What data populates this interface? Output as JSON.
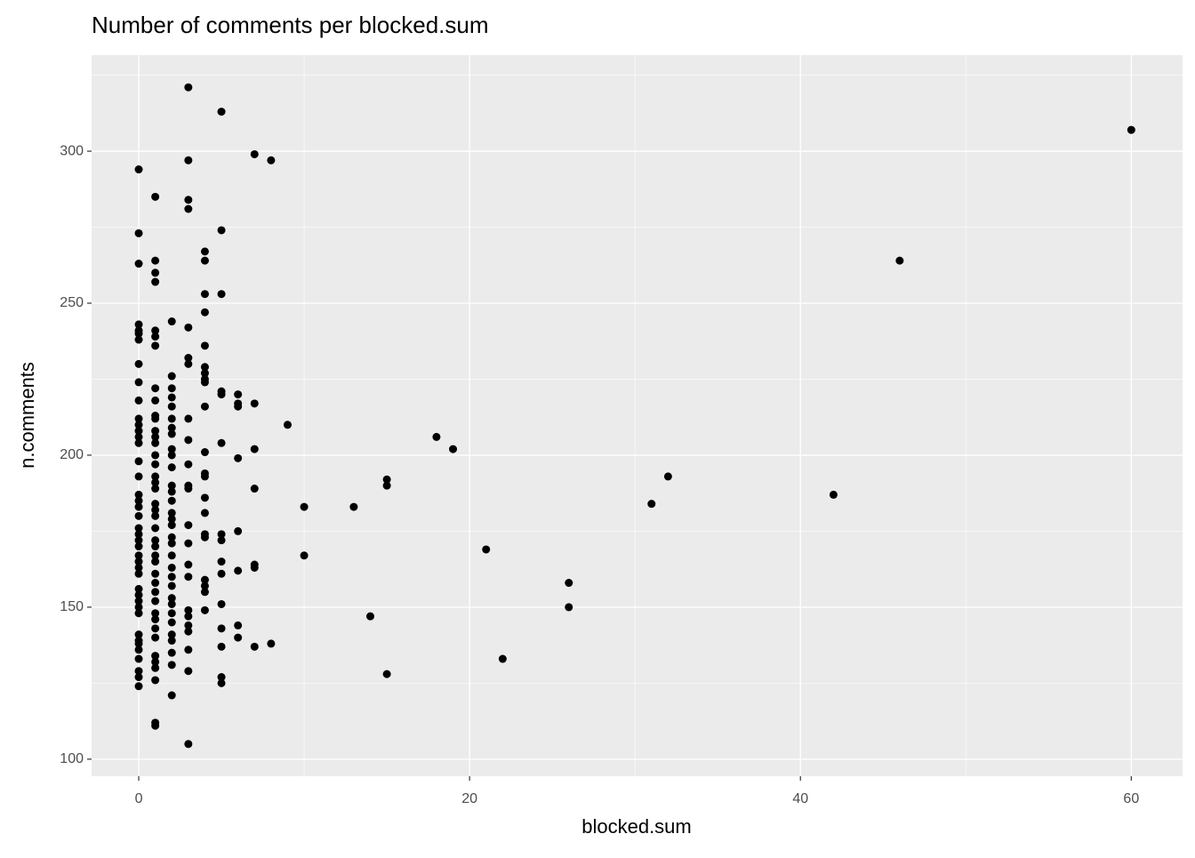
{
  "chart_data": {
    "type": "scatter",
    "title": "Number of comments per blocked.sum",
    "x_label": "blocked.sum",
    "y_label": "n.comments",
    "color": "#000000",
    "grid": true,
    "xlim": [
      -2.85,
      63.1
    ],
    "ylim": [
      94.4,
      331.6
    ],
    "xticks": [
      0,
      20,
      40,
      60
    ],
    "yticks": [
      100,
      150,
      200,
      250,
      300
    ],
    "x": [
      0,
      0,
      0,
      0,
      0,
      0,
      0,
      0,
      0,
      0,
      0,
      0,
      0,
      0,
      0,
      0,
      0,
      0,
      0,
      0,
      0,
      0,
      0,
      0,
      0,
      0,
      0,
      0,
      0,
      0,
      0,
      0,
      0,
      0,
      0,
      0,
      0,
      0,
      0,
      0,
      0,
      0,
      1,
      1,
      1,
      1,
      1,
      1,
      1,
      1,
      1,
      1,
      1,
      1,
      1,
      1,
      1,
      1,
      1,
      1,
      1,
      1,
      1,
      1,
      1,
      1,
      1,
      1,
      1,
      1,
      1,
      1,
      1,
      1,
      1,
      1,
      1,
      1,
      1,
      1,
      1,
      1,
      1,
      2,
      2,
      2,
      2,
      2,
      2,
      2,
      2,
      2,
      2,
      2,
      2,
      2,
      2,
      2,
      2,
      2,
      2,
      2,
      2,
      2,
      2,
      2,
      2,
      2,
      2,
      2,
      2,
      2,
      2,
      2,
      2,
      3,
      3,
      3,
      3,
      3,
      3,
      3,
      3,
      3,
      3,
      3,
      3,
      3,
      3,
      3,
      3,
      3,
      3,
      3,
      3,
      3,
      3,
      3,
      4,
      4,
      4,
      4,
      4,
      4,
      4,
      4,
      4,
      4,
      4,
      4,
      4,
      4,
      4,
      4,
      4,
      4,
      4,
      4,
      4,
      5,
      5,
      5,
      5,
      5,
      5,
      5,
      5,
      5,
      5,
      5,
      5,
      5,
      5,
      5,
      6,
      6,
      6,
      6,
      6,
      6,
      6,
      6,
      7,
      7,
      7,
      7,
      7,
      7,
      7,
      8,
      8,
      9,
      10,
      10,
      13,
      14,
      15,
      15,
      15,
      18,
      19,
      21,
      22,
      26,
      26,
      31,
      32,
      42,
      46,
      60
    ],
    "values": [
      294,
      273,
      263,
      243,
      241,
      240,
      238,
      230,
      224,
      218,
      212,
      210,
      208,
      206,
      204,
      198,
      193,
      187,
      185,
      183,
      180,
      176,
      174,
      172,
      170,
      167,
      165,
      163,
      161,
      156,
      154,
      152,
      150,
      148,
      141,
      139,
      138,
      136,
      133,
      129,
      127,
      124,
      285,
      264,
      260,
      257,
      241,
      239,
      236,
      222,
      218,
      213,
      212,
      208,
      206,
      204,
      200,
      197,
      193,
      191,
      189,
      184,
      182,
      180,
      176,
      172,
      170,
      167,
      165,
      161,
      158,
      155,
      152,
      148,
      146,
      143,
      140,
      134,
      132,
      130,
      126,
      112,
      111,
      244,
      226,
      222,
      219,
      216,
      212,
      209,
      207,
      202,
      200,
      196,
      190,
      188,
      185,
      181,
      179,
      177,
      173,
      171,
      167,
      163,
      160,
      157,
      153,
      151,
      148,
      145,
      141,
      139,
      135,
      131,
      121,
      321,
      297,
      284,
      281,
      242,
      232,
      230,
      212,
      205,
      197,
      190,
      189,
      177,
      171,
      164,
      160,
      149,
      147,
      144,
      142,
      136,
      129,
      105,
      267,
      264,
      253,
      247,
      236,
      229,
      227,
      225,
      224,
      216,
      201,
      194,
      193,
      186,
      181,
      174,
      173,
      159,
      157,
      155,
      149,
      313,
      274,
      253,
      221,
      220,
      204,
      174,
      172,
      165,
      161,
      151,
      143,
      137,
      127,
      125,
      220,
      217,
      216,
      199,
      175,
      162,
      144,
      140,
      299,
      217,
      202,
      189,
      164,
      163,
      137,
      297,
      138,
      210,
      183,
      167,
      183,
      147,
      192,
      190,
      128,
      206,
      202,
      169,
      133,
      158,
      150,
      184,
      193,
      187,
      264,
      307
    ]
  }
}
